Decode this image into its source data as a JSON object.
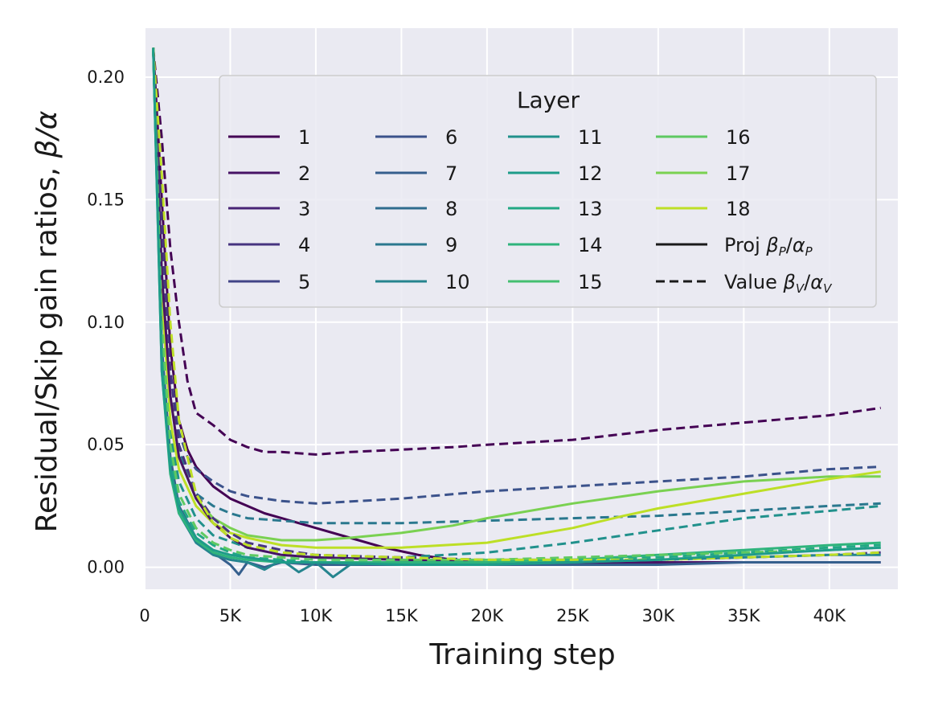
{
  "chart_data": {
    "type": "line",
    "title": "",
    "xlabel": "Training step",
    "ylabel_main": "Residual/Skip gain ratios, ",
    "ylabel_math": "β/α",
    "xlim": [
      0,
      44000
    ],
    "ylim": [
      -0.009,
      0.22
    ],
    "grid": true,
    "background": "#eaeaf2",
    "x_ticks": [
      0,
      5000,
      10000,
      15000,
      20000,
      25000,
      30000,
      35000,
      40000
    ],
    "x_tick_labels": [
      "0",
      "5K",
      "10K",
      "15K",
      "20K",
      "25K",
      "30K",
      "35K",
      "40K"
    ],
    "y_ticks": [
      0.0,
      0.05,
      0.1,
      0.15,
      0.2
    ],
    "y_tick_labels": [
      "0.00",
      "0.05",
      "0.10",
      "0.15",
      "0.20"
    ],
    "legend": {
      "title": "Layer",
      "placement": "upper-center",
      "layer_labels": [
        "1",
        "2",
        "3",
        "4",
        "5",
        "6",
        "7",
        "8",
        "9",
        "10",
        "11",
        "12",
        "13",
        "14",
        "15",
        "16",
        "17",
        "18"
      ],
      "style_entries": [
        {
          "label": "Proj ",
          "math": "β",
          "sub1": "P",
          "slash": "/",
          "math2": "α",
          "sub2": "P",
          "dash": "solid"
        },
        {
          "label": "Value ",
          "math": "β",
          "sub1": "V",
          "slash": "/",
          "math2": "α",
          "sub2": "V",
          "dash": "dashed"
        }
      ]
    },
    "layer_colors": [
      "#440154",
      "#471365",
      "#482475",
      "#463480",
      "#414487",
      "#3b528b",
      "#355f8d",
      "#2f6c8e",
      "#2a788e",
      "#25848e",
      "#21918c",
      "#1e9c89",
      "#22a884",
      "#2fb47c",
      "#44bf70",
      "#5ec962",
      "#7ad151",
      "#bddf26"
    ],
    "series": [
      {
        "name": "Layer 1 Value",
        "layer": 1,
        "style": "dashed",
        "x": [
          500,
          1000,
          1500,
          2000,
          2500,
          3000,
          4000,
          5000,
          6000,
          7000,
          8000,
          10000,
          12000,
          15000,
          18000,
          20000,
          25000,
          30000,
          35000,
          40000,
          43000
        ],
        "y": [
          0.212,
          0.175,
          0.13,
          0.1,
          0.076,
          0.063,
          0.058,
          0.052,
          0.049,
          0.047,
          0.047,
          0.046,
          0.047,
          0.048,
          0.049,
          0.05,
          0.052,
          0.056,
          0.059,
          0.062,
          0.065
        ]
      },
      {
        "name": "Layer 1 Proj",
        "layer": 1,
        "style": "solid",
        "x": [
          500,
          1000,
          1500,
          2000,
          2500,
          3000,
          4000,
          5000,
          6000,
          7000,
          8000,
          10000,
          12000,
          14000,
          16000,
          18000
        ],
        "y": [
          0.212,
          0.15,
          0.09,
          0.06,
          0.048,
          0.041,
          0.033,
          0.028,
          0.025,
          0.022,
          0.02,
          0.016,
          0.012,
          0.008,
          0.005,
          0.003
        ]
      },
      {
        "name": "Layer 6 Value",
        "layer": 6,
        "style": "dashed",
        "x": [
          500,
          1000,
          1500,
          2000,
          2500,
          3000,
          4000,
          5000,
          6000,
          8000,
          10000,
          15000,
          20000,
          25000,
          30000,
          35000,
          40000,
          43000
        ],
        "y": [
          0.212,
          0.13,
          0.08,
          0.055,
          0.045,
          0.04,
          0.035,
          0.031,
          0.029,
          0.027,
          0.026,
          0.028,
          0.031,
          0.033,
          0.035,
          0.037,
          0.04,
          0.041
        ]
      },
      {
        "name": "Layer 9 Value",
        "layer": 9,
        "style": "dashed",
        "x": [
          500,
          1000,
          1500,
          2000,
          2500,
          3000,
          4000,
          5000,
          6000,
          8000,
          10000,
          15000,
          20000,
          25000,
          30000,
          35000,
          40000,
          43000
        ],
        "y": [
          0.212,
          0.12,
          0.07,
          0.048,
          0.037,
          0.03,
          0.025,
          0.022,
          0.02,
          0.019,
          0.018,
          0.018,
          0.019,
          0.02,
          0.021,
          0.023,
          0.025,
          0.026
        ]
      },
      {
        "name": "Layer 11 Value",
        "layer": 11,
        "style": "dashed",
        "x": [
          500,
          1000,
          1500,
          2000,
          3000,
          4000,
          6000,
          8000,
          10000,
          15000,
          20000,
          25000,
          30000,
          35000,
          40000,
          43000
        ],
        "y": [
          0.212,
          0.1,
          0.055,
          0.035,
          0.02,
          0.013,
          0.008,
          0.005,
          0.004,
          0.004,
          0.006,
          0.01,
          0.015,
          0.02,
          0.023,
          0.025
        ]
      },
      {
        "name": "Layer 17 Proj",
        "layer": 17,
        "style": "solid",
        "x": [
          500,
          1000,
          1500,
          2000,
          3000,
          4000,
          5000,
          6000,
          8000,
          10000,
          12000,
          15000,
          18000,
          20000,
          25000,
          30000,
          35000,
          40000,
          43000
        ],
        "y": [
          0.212,
          0.12,
          0.07,
          0.045,
          0.028,
          0.02,
          0.016,
          0.013,
          0.011,
          0.011,
          0.012,
          0.014,
          0.017,
          0.02,
          0.026,
          0.031,
          0.035,
          0.037,
          0.037
        ]
      },
      {
        "name": "Layer 18 Proj",
        "layer": 18,
        "style": "solid",
        "x": [
          500,
          1000,
          1500,
          2000,
          3000,
          4000,
          5000,
          6000,
          8000,
          10000,
          15000,
          20000,
          25000,
          28000,
          30000,
          35000,
          40000,
          43000
        ],
        "y": [
          0.212,
          0.11,
          0.06,
          0.04,
          0.025,
          0.018,
          0.014,
          0.012,
          0.009,
          0.008,
          0.008,
          0.01,
          0.016,
          0.021,
          0.024,
          0.03,
          0.036,
          0.039
        ]
      },
      {
        "name": "Layer 2 Proj",
        "layer": 2,
        "style": "solid",
        "x": [
          500,
          1000,
          1500,
          2000,
          3000,
          4000,
          5000,
          6000,
          8000,
          10000,
          15000,
          20000,
          25000,
          30000,
          35000,
          40000,
          43000
        ],
        "y": [
          0.212,
          0.12,
          0.07,
          0.045,
          0.028,
          0.018,
          0.012,
          0.008,
          0.005,
          0.004,
          0.003,
          0.002,
          0.002,
          0.002,
          0.002,
          0.002,
          0.002
        ]
      },
      {
        "name": "Layer 4 Value",
        "layer": 4,
        "style": "dashed",
        "x": [
          500,
          1000,
          1500,
          2000,
          3000,
          4000,
          5000,
          6000,
          8000,
          10000,
          15000,
          20000,
          25000,
          30000,
          35000,
          40000,
          43000
        ],
        "y": [
          0.212,
          0.14,
          0.08,
          0.05,
          0.03,
          0.02,
          0.014,
          0.01,
          0.007,
          0.005,
          0.004,
          0.003,
          0.003,
          0.003,
          0.004,
          0.005,
          0.006
        ]
      },
      {
        "name": "Layer 7 Proj",
        "layer": 7,
        "style": "solid",
        "x": [
          500,
          1000,
          1500,
          2000,
          3000,
          4000,
          5000,
          5500,
          6000,
          7000,
          8000,
          10000,
          15000,
          20000,
          25000,
          30000,
          35000,
          40000,
          43000
        ],
        "y": [
          0.212,
          0.09,
          0.045,
          0.025,
          0.012,
          0.006,
          0.001,
          -0.003,
          0.002,
          0.0,
          0.002,
          0.001,
          0.001,
          0.001,
          0.001,
          0.001,
          0.002,
          0.002,
          0.002
        ]
      },
      {
        "name": "Layer 10 Proj",
        "layer": 10,
        "style": "solid",
        "x": [
          500,
          1000,
          1500,
          2000,
          3000,
          4000,
          5000,
          6000,
          7000,
          8000,
          9000,
          10000,
          11000,
          12000,
          15000,
          20000,
          25000,
          30000,
          35000,
          40000,
          43000
        ],
        "y": [
          0.212,
          0.085,
          0.04,
          0.022,
          0.01,
          0.005,
          0.003,
          0.002,
          -0.001,
          0.003,
          -0.002,
          0.002,
          -0.004,
          0.001,
          0.002,
          0.001,
          0.002,
          0.003,
          0.004,
          0.005,
          0.005
        ]
      },
      {
        "name": "Layer 13 Value",
        "layer": 13,
        "style": "dashed",
        "x": [
          500,
          1000,
          1500,
          2000,
          3000,
          4000,
          5000,
          6000,
          8000,
          10000,
          15000,
          20000,
          25000,
          30000,
          35000,
          40000,
          43000
        ],
        "y": [
          0.212,
          0.09,
          0.045,
          0.027,
          0.014,
          0.009,
          0.006,
          0.004,
          0.003,
          0.002,
          0.002,
          0.002,
          0.003,
          0.004,
          0.006,
          0.008,
          0.009
        ]
      },
      {
        "name": "Layer 14 Proj",
        "layer": 14,
        "style": "solid",
        "x": [
          500,
          1000,
          1500,
          2000,
          3000,
          4000,
          5000,
          6000,
          8000,
          10000,
          15000,
          20000,
          25000,
          30000,
          35000,
          40000,
          43000
        ],
        "y": [
          0.212,
          0.08,
          0.038,
          0.022,
          0.011,
          0.006,
          0.004,
          0.003,
          0.002,
          0.002,
          0.002,
          0.002,
          0.003,
          0.005,
          0.007,
          0.009,
          0.01
        ]
      },
      {
        "name": "Layer 16 Value",
        "layer": 16,
        "style": "dashed",
        "x": [
          500,
          1000,
          1500,
          2000,
          3000,
          4000,
          5000,
          6000,
          8000,
          10000,
          15000,
          20000,
          25000,
          30000,
          35000,
          40000,
          43000
        ],
        "y": [
          0.212,
          0.1,
          0.05,
          0.03,
          0.016,
          0.01,
          0.007,
          0.005,
          0.004,
          0.003,
          0.003,
          0.003,
          0.004,
          0.005,
          0.006,
          0.007,
          0.008
        ]
      },
      {
        "name": "Layer 18 Value",
        "layer": 18,
        "style": "dashed",
        "x": [
          500,
          1000,
          1500,
          2000,
          3000,
          4000,
          5000,
          6000,
          8000,
          10000,
          15000,
          20000,
          25000,
          30000,
          35000,
          40000,
          43000
        ],
        "y": [
          0.212,
          0.16,
          0.1,
          0.06,
          0.03,
          0.018,
          0.012,
          0.009,
          0.006,
          0.005,
          0.004,
          0.003,
          0.003,
          0.003,
          0.004,
          0.005,
          0.006
        ]
      },
      {
        "name": "Layer 12 Proj",
        "layer": 12,
        "style": "solid",
        "x": [
          500,
          1000,
          1500,
          2000,
          3000,
          4000,
          5000,
          6000,
          8000,
          10000,
          15000,
          20000,
          25000,
          30000,
          35000,
          40000,
          43000
        ],
        "y": [
          0.212,
          0.08,
          0.04,
          0.024,
          0.012,
          0.007,
          0.005,
          0.004,
          0.002,
          0.002,
          0.001,
          0.001,
          0.002,
          0.003,
          0.005,
          0.007,
          0.008
        ]
      }
    ]
  }
}
